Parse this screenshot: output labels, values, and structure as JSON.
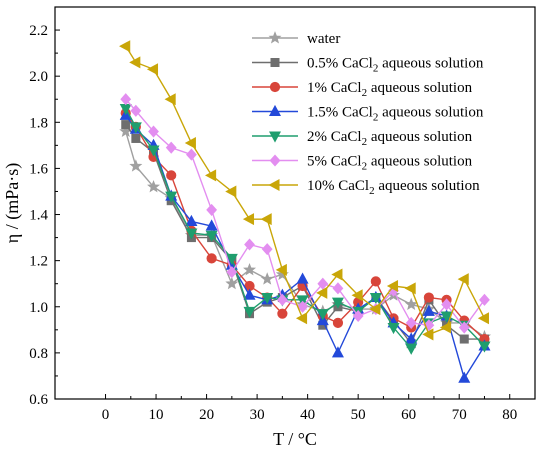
{
  "chart_data": {
    "type": "line",
    "xlabel": "T / °C",
    "ylabel": "η / (mPa·s)",
    "xlim": [
      -10,
      85
    ],
    "ylim": [
      0.6,
      2.3
    ],
    "xticks": [
      "0",
      "10",
      "20",
      "30",
      "40",
      "50",
      "60",
      "70",
      "80"
    ],
    "yticks": [
      "0.6",
      "0.8",
      "1.0",
      "1.2",
      "1.4",
      "1.6",
      "1.8",
      "2.0",
      "2.2"
    ],
    "legend_position": "top-right",
    "series": [
      {
        "name": "water",
        "color": "#a0a0a0",
        "marker": "star",
        "x": [
          4,
          6,
          9.5,
          13,
          17,
          21,
          25,
          28.5,
          32,
          35,
          39,
          43,
          46,
          50,
          53.5,
          57,
          60.5,
          64,
          67.5,
          71,
          75
        ],
        "y": [
          1.76,
          1.61,
          1.52,
          1.47,
          1.31,
          1.31,
          1.1,
          1.16,
          1.12,
          1.14,
          1.01,
          0.98,
          1.01,
          0.99,
          0.99,
          1.05,
          1.01,
          0.99,
          0.93,
          0.93,
          0.87
        ]
      },
      {
        "name": "0.5% CaCl2 aqueous solution",
        "name_main": "0.5% CaCl",
        "name_sub": "2",
        "name_tail": " aqueous solution",
        "color": "#6e6e6e",
        "marker": "square",
        "x": [
          4,
          6,
          9.5,
          13,
          17,
          21,
          25,
          28.5,
          32,
          35,
          39,
          43,
          46,
          50,
          53.5,
          57,
          60.5,
          64,
          67.5,
          71,
          75
        ],
        "y": [
          1.79,
          1.73,
          1.67,
          1.46,
          1.3,
          1.3,
          1.2,
          0.97,
          1.02,
          1.04,
          1.09,
          0.92,
          1.0,
          0.98,
          1.04,
          0.94,
          0.84,
          1.03,
          0.92,
          0.86,
          0.86
        ]
      },
      {
        "name": "1% CaCl2 aqueous solution",
        "name_main": "1% CaCl",
        "name_sub": "2",
        "name_tail": " aqueous solution",
        "color": "#d8453a",
        "marker": "circle",
        "x": [
          4,
          6,
          9.5,
          13,
          17,
          21,
          25,
          28.5,
          32,
          35,
          39,
          43,
          46,
          50,
          53.5,
          57,
          60.5,
          64,
          67.5,
          71,
          75
        ],
        "y": [
          1.84,
          1.78,
          1.65,
          1.57,
          1.33,
          1.21,
          1.18,
          1.09,
          1.04,
          0.97,
          1.09,
          0.96,
          0.93,
          1.02,
          1.11,
          0.95,
          0.91,
          1.04,
          1.03,
          0.94,
          0.86
        ]
      },
      {
        "name": "1.5% CaCl2 aqueous solution",
        "name_main": "1.5% CaCl",
        "name_sub": "2",
        "name_tail": " aqueous solution",
        "color": "#2349d9",
        "marker": "triangle-up",
        "x": [
          4,
          6,
          9.5,
          13,
          17,
          21,
          25,
          28.5,
          32,
          35,
          39,
          43,
          46,
          50,
          53.5,
          57,
          60.5,
          64,
          67.5,
          71,
          75
        ],
        "y": [
          1.83,
          1.77,
          1.7,
          1.48,
          1.37,
          1.35,
          1.18,
          1.05,
          1.03,
          1.05,
          1.12,
          0.94,
          0.8,
          0.99,
          1.04,
          0.93,
          0.86,
          0.98,
          0.96,
          0.69,
          0.83
        ]
      },
      {
        "name": "2% CaCl2 aqueous solution",
        "name_main": "2% CaCl",
        "name_sub": "2",
        "name_tail": " aqueous solution",
        "color": "#1f9e6e",
        "marker": "triangle-down",
        "x": [
          4,
          6,
          9.5,
          13,
          17,
          21,
          25,
          28.5,
          32,
          35,
          39,
          43,
          46,
          50,
          53.5,
          57,
          60.5,
          64,
          67.5,
          71,
          75
        ],
        "y": [
          1.86,
          1.78,
          1.68,
          1.48,
          1.32,
          1.31,
          1.21,
          0.98,
          1.04,
          1.03,
          1.03,
          0.97,
          1.02,
          0.98,
          1.04,
          0.91,
          0.82,
          0.93,
          0.96,
          0.92,
          0.83
        ]
      },
      {
        "name": "5% CaCl2 aqueous solution",
        "name_main": "5% CaCl",
        "name_sub": "2",
        "name_tail": " aqueous solution",
        "color": "#e38ef0",
        "marker": "diamond",
        "x": [
          4,
          6,
          9.5,
          13,
          17,
          21,
          25,
          28.5,
          32,
          35,
          39,
          43,
          46,
          50,
          53.5,
          57,
          60.5,
          64,
          67.5,
          71,
          75
        ],
        "y": [
          1.9,
          1.85,
          1.76,
          1.69,
          1.66,
          1.42,
          1.15,
          1.27,
          1.25,
          1.03,
          1.0,
          1.1,
          1.08,
          0.96,
          0.99,
          1.07,
          0.93,
          0.92,
          1.01,
          0.91,
          1.03
        ]
      },
      {
        "name": "10% CaCl2 aqueous solution",
        "name_main": "10% CaCl",
        "name_sub": "2",
        "name_tail": " aqueous solution",
        "color": "#c9a608",
        "marker": "triangle-left",
        "x": [
          4,
          6,
          9.5,
          13,
          17,
          21,
          25,
          28.5,
          32,
          35,
          39,
          43,
          46,
          50,
          53.5,
          57,
          60.5,
          64,
          67.5,
          71,
          75
        ],
        "y": [
          2.13,
          2.06,
          2.03,
          1.9,
          1.71,
          1.57,
          1.5,
          1.38,
          1.38,
          1.16,
          0.95,
          1.06,
          1.14,
          1.05,
          0.99,
          1.09,
          1.08,
          0.88,
          0.91,
          1.12,
          0.95
        ]
      }
    ]
  }
}
